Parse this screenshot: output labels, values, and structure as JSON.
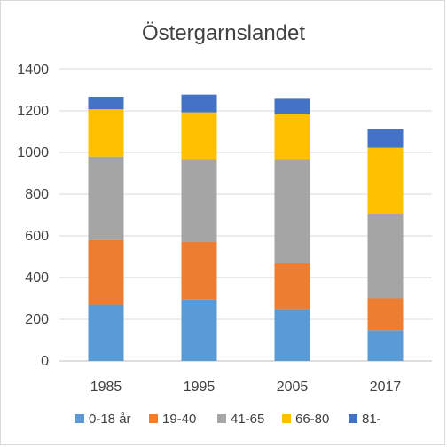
{
  "chart_data": {
    "type": "bar",
    "stacked": true,
    "title": "Östergarnslandet",
    "xlabel": "",
    "ylabel": "",
    "categories": [
      "1985",
      "1995",
      "2005",
      "2017"
    ],
    "ylim": [
      0,
      1400
    ],
    "yticks": [
      "0",
      "200",
      "400",
      "600",
      "800",
      "1000",
      "1200",
      "1400"
    ],
    "grid": true,
    "legend_position": "bottom",
    "series": [
      {
        "name": "0-18 år",
        "color": "#5b9bd5",
        "values": [
          270,
          295,
          250,
          148
        ]
      },
      {
        "name": "19-40",
        "color": "#ed7d31",
        "values": [
          310,
          278,
          218,
          152
        ]
      },
      {
        "name": "41-65",
        "color": "#a5a5a5",
        "values": [
          400,
          395,
          500,
          408
        ]
      },
      {
        "name": "66-80",
        "color": "#ffc000",
        "values": [
          228,
          225,
          217,
          315
        ]
      },
      {
        "name": "81-",
        "color": "#4472c4",
        "values": [
          60,
          85,
          73,
          90
        ]
      }
    ]
  }
}
